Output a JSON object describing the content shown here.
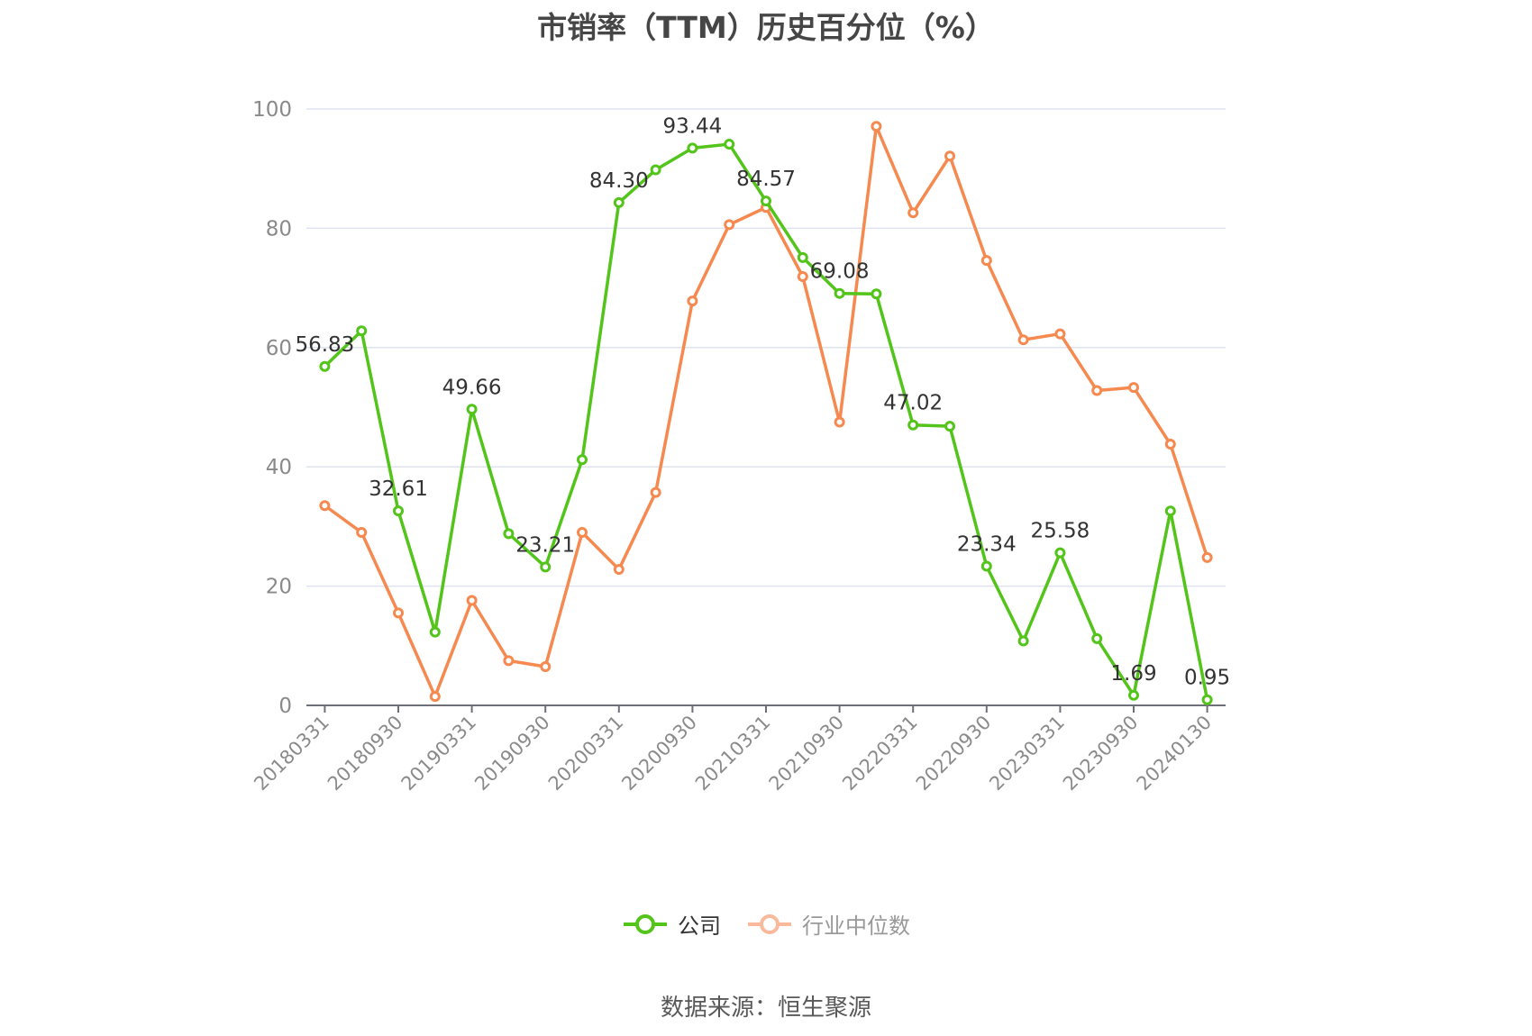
{
  "chart_data": {
    "type": "line",
    "title": "市销率（TTM）历史百分位（%）",
    "ylim": [
      0,
      100
    ],
    "yticks": [
      0,
      20,
      40,
      60,
      80,
      100
    ],
    "x": [
      "20180331",
      "20180630",
      "20180930",
      "20181231",
      "20190331",
      "20190630",
      "20190930",
      "20191231",
      "20200331",
      "20200630",
      "20200930",
      "20201231",
      "20210331",
      "20210630",
      "20210930",
      "20211231",
      "20220331",
      "20220630",
      "20220930",
      "20221231",
      "20230331",
      "20230630",
      "20230930",
      "20231231",
      "20240130"
    ],
    "xticks": [
      "20180331",
      "20180930",
      "20190331",
      "20190930",
      "20200331",
      "20200930",
      "20210331",
      "20210930",
      "20220331",
      "20220930",
      "20230331",
      "20230930",
      "20240130"
    ],
    "grid": true,
    "legend_position": "bottom",
    "series": [
      {
        "name": "公司",
        "color": "#52c41a",
        "values": [
          56.83,
          62.8,
          32.61,
          12.3,
          49.66,
          28.8,
          23.21,
          41.2,
          84.3,
          89.8,
          93.44,
          94.1,
          84.57,
          75.1,
          69.08,
          69.0,
          47.02,
          46.8,
          23.34,
          10.8,
          25.58,
          11.2,
          1.69,
          32.6,
          0.95
        ],
        "labels": [
          "56.83",
          "",
          "32.61",
          "",
          "49.66",
          "",
          "23.21",
          "",
          "84.30",
          "",
          "93.44",
          "",
          "84.57",
          "",
          "69.08",
          "",
          "47.02",
          "",
          "23.34",
          "",
          "25.58",
          "",
          "1.69",
          "",
          "0.95"
        ]
      },
      {
        "name": "行业中位数",
        "color": "#f5894f",
        "values": [
          33.5,
          29.0,
          15.5,
          1.5,
          17.6,
          7.5,
          6.5,
          29.0,
          22.8,
          35.7,
          67.8,
          80.6,
          83.5,
          71.9,
          47.5,
          97.1,
          82.6,
          92.1,
          74.6,
          61.3,
          62.3,
          52.8,
          53.3,
          43.8,
          24.8
        ],
        "labels": []
      }
    ]
  },
  "legend": {
    "items": [
      {
        "label": "公司",
        "color": "#52c41a",
        "text_color": "#333333"
      },
      {
        "label": "行业中位数",
        "color": "#f5894f",
        "text_color": "#999999"
      }
    ]
  },
  "source": "数据来源：恒生聚源"
}
